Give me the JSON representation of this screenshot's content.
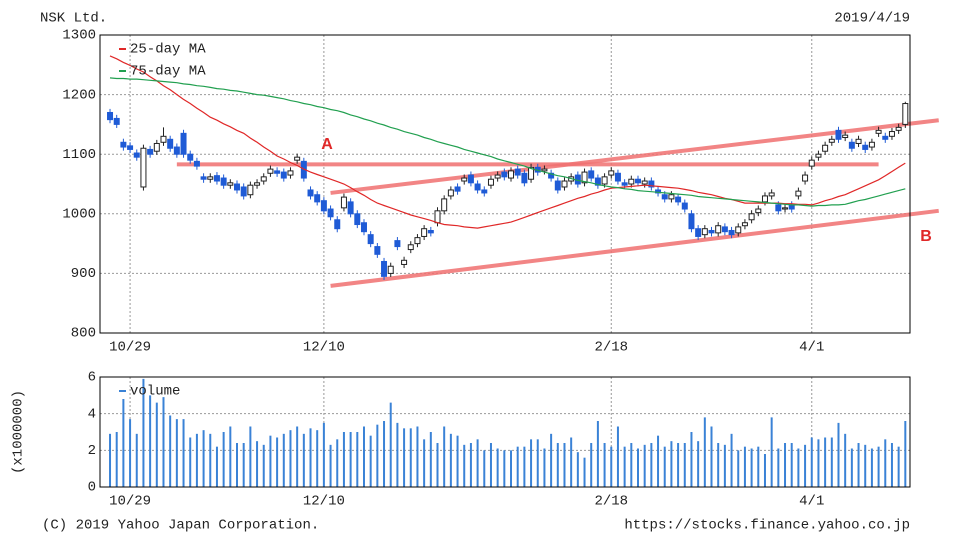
{
  "header": {
    "title": "NSK Ltd.",
    "date": "2019/4/19"
  },
  "chart_data": [
    {
      "type": "candlestick",
      "categories": [
        null,
        null,
        null,
        "10/29",
        null,
        null,
        null,
        null,
        null,
        null,
        null,
        null,
        null,
        null,
        null,
        null,
        null,
        null,
        null,
        null,
        null,
        null,
        null,
        null,
        null,
        null,
        null,
        null,
        null,
        null,
        null,
        null,
        "12/10",
        null,
        null,
        null,
        null,
        null,
        null,
        null,
        null,
        null,
        null,
        null,
        null,
        null,
        null,
        null,
        null,
        null,
        null,
        null,
        null,
        null,
        null,
        null,
        null,
        null,
        null,
        null,
        null,
        null,
        null,
        null,
        null,
        null,
        null,
        null,
        null,
        null,
        null,
        null,
        null,
        null,
        null,
        "2/18",
        null,
        null,
        null,
        null,
        null,
        null,
        null,
        null,
        null,
        null,
        null,
        null,
        null,
        null,
        null,
        null,
        null,
        null,
        null,
        null,
        null,
        null,
        null,
        null,
        null,
        null,
        null,
        null,
        null,
        "4/1",
        null,
        null,
        null,
        null,
        null,
        null,
        null,
        null,
        null,
        null,
        null,
        null,
        null,
        null
      ],
      "open": [
        1170,
        1160,
        1120,
        1114,
        1102,
        1045,
        1108,
        1105,
        1120,
        1125,
        1112,
        1135,
        1100,
        1088,
        1062,
        1058,
        1064,
        1060,
        1048,
        1050,
        1045,
        1032,
        1048,
        1055,
        1068,
        1072,
        1070,
        1065,
        1090,
        1088,
        1040,
        1032,
        1022,
        1008,
        990,
        1010,
        1020,
        1000,
        985,
        965,
        945,
        920,
        900,
        955,
        915,
        940,
        950,
        962,
        972,
        985,
        1005,
        1030,
        1045,
        1055,
        1065,
        1050,
        1040,
        1048,
        1060,
        1070,
        1060,
        1075,
        1068,
        1058,
        1078,
        1072,
        1068,
        1055,
        1045,
        1055,
        1065,
        1052,
        1072,
        1060,
        1050,
        1065,
        1068,
        1052,
        1050,
        1058,
        1050,
        1055,
        1040,
        1032,
        1025,
        1028,
        1018,
        1000,
        975,
        965,
        972,
        968,
        978,
        972,
        968,
        980,
        990,
        1002,
        1020,
        1030,
        1015,
        1008,
        1015,
        1030,
        1055,
        1080,
        1095,
        1105,
        1120,
        1140,
        1128,
        1120,
        1118,
        1115,
        1112,
        1135,
        1130,
        1130,
        1140,
        1150
      ],
      "high": [
        1176,
        1166,
        1126,
        1120,
        1108,
        1116,
        1114,
        1124,
        1145,
        1131,
        1118,
        1141,
        1106,
        1094,
        1068,
        1068,
        1070,
        1066,
        1058,
        1056,
        1051,
        1054,
        1058,
        1068,
        1081,
        1078,
        1076,
        1078,
        1101,
        1094,
        1046,
        1038,
        1028,
        1014,
        996,
        1034,
        1026,
        1006,
        991,
        971,
        951,
        926,
        918,
        961,
        928,
        954,
        966,
        981,
        978,
        1011,
        1031,
        1046,
        1051,
        1066,
        1071,
        1056,
        1046,
        1064,
        1071,
        1076,
        1078,
        1081,
        1074,
        1084,
        1084,
        1081,
        1074,
        1061,
        1061,
        1068,
        1071,
        1076,
        1078,
        1066,
        1068,
        1078,
        1074,
        1058,
        1064,
        1064,
        1061,
        1061,
        1046,
        1038,
        1038,
        1034,
        1024,
        1006,
        981,
        981,
        978,
        986,
        984,
        978,
        984,
        991,
        1006,
        1014,
        1036,
        1041,
        1021,
        1016,
        1021,
        1044,
        1071,
        1096,
        1106,
        1121,
        1131,
        1146,
        1138,
        1126,
        1131,
        1121,
        1126,
        1146,
        1136,
        1144,
        1151,
        1188
      ],
      "low": [
        1152,
        1144,
        1106,
        1102,
        1089,
        1039,
        1094,
        1099,
        1114,
        1104,
        1094,
        1094,
        1084,
        1074,
        1052,
        1052,
        1049,
        1042,
        1042,
        1034,
        1024,
        1026,
        1042,
        1049,
        1062,
        1062,
        1054,
        1059,
        1084,
        1054,
        1024,
        1014,
        999,
        989,
        969,
        1004,
        994,
        976,
        964,
        944,
        926,
        889,
        894,
        939,
        909,
        934,
        944,
        956,
        962,
        979,
        999,
        1024,
        1032,
        1049,
        1046,
        1034,
        1029,
        1042,
        1054,
        1056,
        1054,
        1059,
        1046,
        1052,
        1064,
        1066,
        1054,
        1034,
        1039,
        1049,
        1044,
        1046,
        1054,
        1042,
        1044,
        1059,
        1049,
        1042,
        1044,
        1046,
        1044,
        1039,
        1029,
        1019,
        1019,
        1014,
        1002,
        969,
        956,
        959,
        962,
        962,
        964,
        959,
        962,
        974,
        984,
        996,
        1014,
        1024,
        999,
        1002,
        1002,
        1024,
        1049,
        1074,
        1089,
        1099,
        1114,
        1119,
        1122,
        1104,
        1112,
        1102,
        1106,
        1129,
        1119,
        1124,
        1134,
        1144
      ],
      "close": [
        1158,
        1150,
        1112,
        1108,
        1095,
        1110,
        1100,
        1118,
        1130,
        1110,
        1100,
        1100,
        1090,
        1080,
        1058,
        1062,
        1055,
        1048,
        1052,
        1040,
        1030,
        1048,
        1052,
        1062,
        1075,
        1068,
        1060,
        1072,
        1095,
        1060,
        1030,
        1020,
        1005,
        995,
        975,
        1028,
        1000,
        982,
        970,
        950,
        932,
        895,
        912,
        945,
        922,
        948,
        960,
        975,
        968,
        1005,
        1025,
        1040,
        1038,
        1060,
        1052,
        1040,
        1035,
        1058,
        1065,
        1062,
        1072,
        1065,
        1052,
        1078,
        1070,
        1075,
        1060,
        1040,
        1055,
        1062,
        1050,
        1070,
        1060,
        1048,
        1062,
        1072,
        1055,
        1048,
        1058,
        1052,
        1055,
        1045,
        1035,
        1025,
        1032,
        1020,
        1008,
        975,
        962,
        975,
        968,
        980,
        970,
        965,
        978,
        985,
        1000,
        1008,
        1030,
        1035,
        1005,
        1010,
        1008,
        1038,
        1065,
        1090,
        1100,
        1115,
        1125,
        1125,
        1132,
        1110,
        1125,
        1108,
        1120,
        1140,
        1125,
        1138,
        1145,
        1185
      ],
      "up_color": "#ffffff",
      "down_color": "#1f5bd6",
      "series": [
        {
          "name": "25-day MA",
          "color": "#e02828",
          "values": [
            1265,
            1260,
            1254,
            1249,
            1243,
            1238,
            1230,
            1223,
            1215,
            1208,
            1200,
            1192,
            1185,
            1177,
            1170,
            1162,
            1157,
            1151,
            1146,
            1140,
            1135,
            1127,
            1120,
            1112,
            1105,
            1097,
            1092,
            1086,
            1081,
            1075,
            1070,
            1066,
            1062,
            1058,
            1054,
            1050,
            1044,
            1037,
            1031,
            1024,
            1018,
            1014,
            1010,
            1006,
            1002,
            998,
            995,
            992,
            989,
            985,
            982,
            981,
            980,
            978,
            977,
            976,
            978,
            980,
            982,
            984,
            986,
            990,
            994,
            998,
            1002,
            1006,
            1010,
            1014,
            1018,
            1022,
            1026,
            1029,
            1033,
            1036,
            1040,
            1043,
            1044,
            1045,
            1046,
            1047,
            1048,
            1047,
            1046,
            1045,
            1044,
            1043,
            1041,
            1039,
            1036,
            1034,
            1032,
            1029,
            1026,
            1024,
            1021,
            1018,
            1018,
            1018,
            1018,
            1018,
            1018,
            1017,
            1017,
            1016,
            1016,
            1015,
            1018,
            1022,
            1025,
            1029,
            1032,
            1037,
            1042,
            1047,
            1052,
            1057,
            1064,
            1071,
            1078,
            1085
          ]
        },
        {
          "name": "75-day MA",
          "color": "#22a050",
          "values": [
            1228,
            1227,
            1227,
            1226,
            1226,
            1225,
            1224,
            1223,
            1222,
            1221,
            1220,
            1218,
            1217,
            1215,
            1214,
            1212,
            1210,
            1209,
            1207,
            1206,
            1204,
            1202,
            1200,
            1199,
            1197,
            1195,
            1193,
            1190,
            1188,
            1185,
            1183,
            1180,
            1178,
            1175,
            1173,
            1170,
            1166,
            1163,
            1159,
            1156,
            1152,
            1149,
            1145,
            1142,
            1138,
            1135,
            1132,
            1128,
            1125,
            1121,
            1118,
            1115,
            1112,
            1108,
            1105,
            1102,
            1099,
            1096,
            1092,
            1089,
            1086,
            1083,
            1080,
            1076,
            1073,
            1070,
            1067,
            1064,
            1062,
            1059,
            1056,
            1054,
            1052,
            1049,
            1047,
            1045,
            1044,
            1042,
            1041,
            1039,
            1038,
            1037,
            1036,
            1035,
            1034,
            1033,
            1032,
            1031,
            1029,
            1028,
            1027,
            1026,
            1025,
            1024,
            1023,
            1022,
            1021,
            1020,
            1019,
            1018,
            1017,
            1016,
            1015,
            1015,
            1014,
            1013,
            1014,
            1014,
            1015,
            1015,
            1016,
            1019,
            1022,
            1024,
            1027,
            1030,
            1033,
            1036,
            1039,
            1042
          ]
        }
      ],
      "trendlines": [
        {
          "label": "A",
          "y": [
            1083,
            1083
          ]
        },
        {
          "y": [
            1035,
            1157
          ]
        },
        {
          "label": "B",
          "y": [
            879,
            1005
          ]
        }
      ],
      "trendline_color": "#f07070",
      "ylim": [
        800,
        1300
      ],
      "yticks": [
        800,
        900,
        1000,
        1100,
        1200,
        1300
      ],
      "grid": true
    },
    {
      "type": "bar",
      "categories": [
        null,
        null,
        null,
        "10/29",
        null,
        null,
        null,
        null,
        null,
        null,
        null,
        null,
        null,
        null,
        null,
        null,
        null,
        null,
        null,
        null,
        null,
        null,
        null,
        null,
        null,
        null,
        null,
        null,
        null,
        null,
        null,
        null,
        "12/10",
        null,
        null,
        null,
        null,
        null,
        null,
        null,
        null,
        null,
        null,
        null,
        null,
        null,
        null,
        null,
        null,
        null,
        null,
        null,
        null,
        null,
        null,
        null,
        null,
        null,
        null,
        null,
        null,
        null,
        null,
        null,
        null,
        null,
        null,
        null,
        null,
        null,
        null,
        null,
        null,
        null,
        null,
        "2/18",
        null,
        null,
        null,
        null,
        null,
        null,
        null,
        null,
        null,
        null,
        null,
        null,
        null,
        null,
        null,
        null,
        null,
        null,
        null,
        null,
        null,
        null,
        null,
        null,
        null,
        null,
        null,
        null,
        null,
        "4/1",
        null,
        null,
        null,
        null,
        null,
        null,
        null,
        null,
        null,
        null,
        null,
        null,
        null,
        null
      ],
      "ylabel": "(x1000000)",
      "series": [
        {
          "name": "volume",
          "color": "#3a82d6",
          "values": [
            2.9,
            3.0,
            4.8,
            3.7,
            2.9,
            5.9,
            5.0,
            4.6,
            4.9,
            3.9,
            3.7,
            3.7,
            2.7,
            2.9,
            3.1,
            2.9,
            2.2,
            3.0,
            3.3,
            2.4,
            2.4,
            3.3,
            2.5,
            2.3,
            2.8,
            2.7,
            2.9,
            3.1,
            3.3,
            2.9,
            3.2,
            3.1,
            3.5,
            2.3,
            2.6,
            3.0,
            3.0,
            3.0,
            3.3,
            2.8,
            3.4,
            3.6,
            4.6,
            3.5,
            3.2,
            3.2,
            3.3,
            2.6,
            3.0,
            2.4,
            3.3,
            2.9,
            2.8,
            2.3,
            2.4,
            2.6,
            2.0,
            2.4,
            2.1,
            2.0,
            2.0,
            2.2,
            2.2,
            2.6,
            2.6,
            2.1,
            2.9,
            2.4,
            2.4,
            2.7,
            1.9,
            1.6,
            2.4,
            3.6,
            2.4,
            2.2,
            3.3,
            2.2,
            2.4,
            2.1,
            2.3,
            2.4,
            2.8,
            2.2,
            2.5,
            2.4,
            2.4,
            3.0,
            2.5,
            3.8,
            3.3,
            2.4,
            2.3,
            2.9,
            2.0,
            2.2,
            2.1,
            2.2,
            1.8,
            3.8,
            2.1,
            2.4,
            2.4,
            2.1,
            2.3,
            2.7,
            2.6,
            2.7,
            2.7,
            3.5,
            2.9,
            2.1,
            2.4,
            2.3,
            2.1,
            2.2,
            2.6,
            2.4,
            2.2,
            3.6
          ]
        }
      ],
      "ylim": [
        0,
        6
      ],
      "yticks": [
        0,
        2,
        4,
        6
      ],
      "grid": true
    }
  ],
  "footer": {
    "copyright": "(C) 2019 Yahoo Japan Corporation.",
    "url": "https://stocks.finance.yahoo.co.jp"
  }
}
